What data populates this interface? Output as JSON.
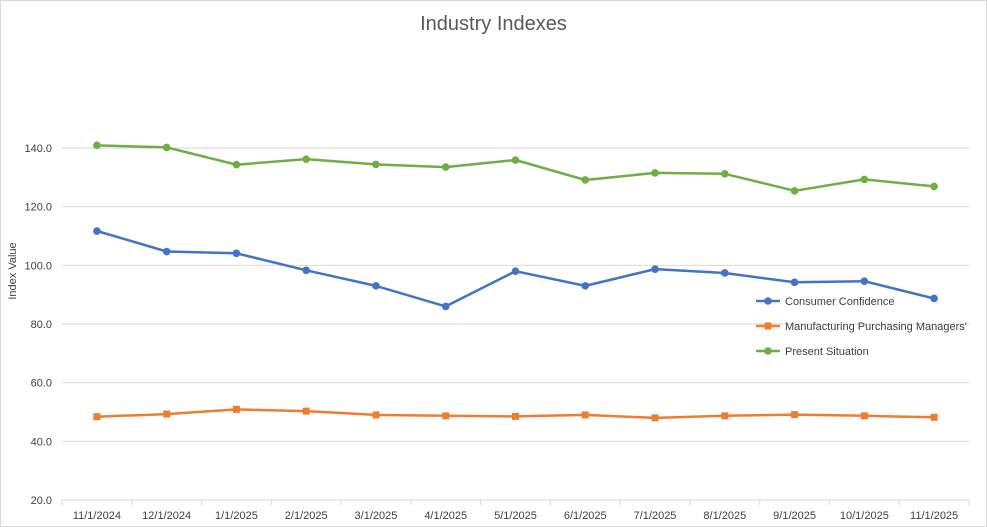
{
  "chart_data": {
    "type": "line",
    "title": "Industry Indexes",
    "xlabel": "",
    "ylabel": "Index Value",
    "ylim": [
      20,
      140
    ],
    "yticks": [
      "20.0",
      "40.0",
      "60.0",
      "80.0",
      "100.0",
      "120.0",
      "140.0"
    ],
    "grid": true,
    "legend_position": "right",
    "categories": [
      "11/1/2024",
      "12/1/2024",
      "1/1/2025",
      "2/1/2025",
      "3/1/2025",
      "4/1/2025",
      "5/1/2025",
      "6/1/2025",
      "7/1/2025",
      "8/1/2025",
      "9/1/2025",
      "10/1/2025",
      "11/1/2025"
    ],
    "series": [
      {
        "name": "Consumer Confidence",
        "color": "#4472c4",
        "marker": "circle",
        "values": [
          111.7,
          104.7,
          104.1,
          98.3,
          93.0,
          86.0,
          98.0,
          93.0,
          98.7,
          97.4,
          94.2,
          94.6,
          88.7
        ]
      },
      {
        "name": "Manufacturing Purchasing Managers'",
        "color": "#ed7d31",
        "marker": "square",
        "values": [
          48.4,
          49.3,
          50.9,
          50.3,
          49.0,
          48.7,
          48.5,
          49.0,
          48.0,
          48.7,
          49.1,
          48.7,
          48.2
        ]
      },
      {
        "name": "Present Situation",
        "color": "#70ad47",
        "marker": "circle",
        "values": [
          140.9,
          140.2,
          134.3,
          136.2,
          134.4,
          133.5,
          135.9,
          129.1,
          131.5,
          131.2,
          125.4,
          129.3,
          126.9
        ]
      }
    ]
  }
}
